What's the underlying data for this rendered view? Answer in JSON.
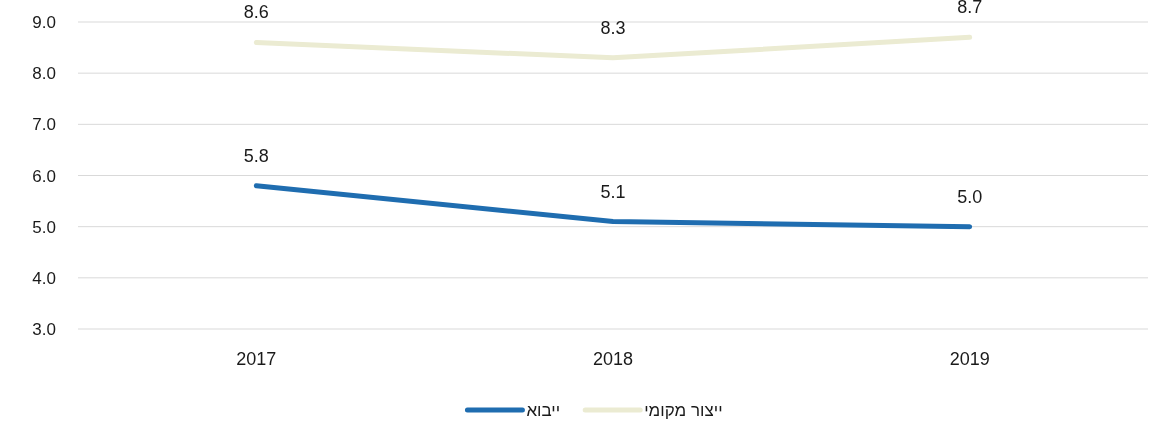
{
  "chart_data": {
    "type": "line",
    "categories": [
      "2017",
      "2018",
      "2019"
    ],
    "series": [
      {
        "name": "ייצור מקומי",
        "color": "#ebebd2",
        "values": [
          8.6,
          8.3,
          8.7
        ],
        "value_labels": [
          "8.6",
          "8.3",
          "8.7"
        ]
      },
      {
        "name": "ייבוא",
        "color": "#1f6db0",
        "values": [
          5.8,
          5.1,
          5.0
        ],
        "value_labels": [
          "5.8",
          "5.1",
          "5.0"
        ]
      }
    ],
    "ylim": [
      3,
      9
    ],
    "yticks": [
      {
        "value": 3,
        "label": "3.0"
      },
      {
        "value": 4,
        "label": "4.0"
      },
      {
        "value": 5,
        "label": "5.0"
      },
      {
        "value": 6,
        "label": "6.0"
      },
      {
        "value": 7,
        "label": "7.0"
      },
      {
        "value": 8,
        "label": "8.0"
      },
      {
        "value": 9,
        "label": "9.0"
      }
    ],
    "grid": "y",
    "legend": "bottom"
  }
}
